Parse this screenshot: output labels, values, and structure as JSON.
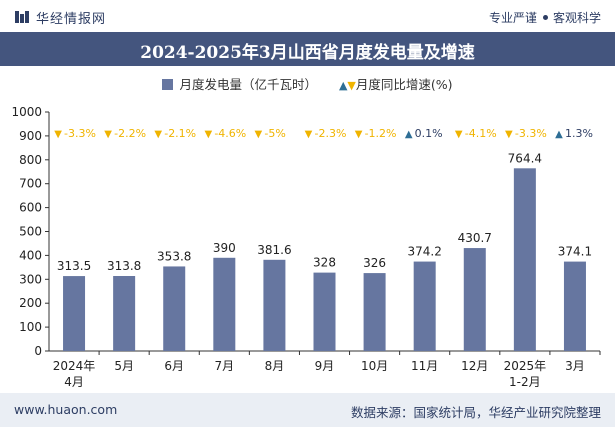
{
  "header": {
    "brand": "华经情报网",
    "tag1": "专业严谨",
    "tag2": "客观科学"
  },
  "title": "2024-2025年3月山西省月度发电量及增速",
  "legend": {
    "series1": "月度发电量（亿千瓦时）",
    "series2": "月度同比增速(%)"
  },
  "footer": {
    "website": "www.huaon.com",
    "source": "数据来源：国家统计局，华经产业研究院整理"
  },
  "colors": {
    "bar": "#6676a0",
    "title_bg": "#44557e",
    "growth_up": "#2e6e95",
    "growth_down": "#f0b400"
  },
  "chart_data": {
    "type": "bar",
    "categories": [
      "2024年4月",
      "5月",
      "6月",
      "7月",
      "8月",
      "9月",
      "10月",
      "11月",
      "12月",
      "2025年1-2月",
      "3月"
    ],
    "series": [
      {
        "name": "月度发电量（亿千瓦时）",
        "values": [
          313.5,
          313.8,
          353.8,
          390,
          381.6,
          328,
          326,
          374.2,
          430.7,
          764.4,
          374.1
        ]
      },
      {
        "name": "月度同比增速(%)",
        "values": [
          -3.3,
          -2.2,
          -2.1,
          -4.6,
          -5,
          -2.3,
          -1.2,
          0.1,
          -4.1,
          -3.3,
          1.3
        ]
      }
    ],
    "value_labels": [
      "313.5",
      "313.8",
      "353.8",
      "390",
      "381.6",
      "328",
      "326",
      "374.2",
      "430.7",
      "764.4",
      "374.1"
    ],
    "growth_labels": [
      "-3.3%",
      "-2.2%",
      "-2.1%",
      "-4.6%",
      "-5%",
      "-2.3%",
      "-1.2%",
      "0.1%",
      "-4.1%",
      "-3.3%",
      "1.3%"
    ],
    "yticks": [
      "0",
      "100",
      "200",
      "300",
      "400",
      "500",
      "600",
      "700",
      "800",
      "900",
      "1000"
    ],
    "ylim": [
      0,
      1000
    ],
    "grid": false
  }
}
